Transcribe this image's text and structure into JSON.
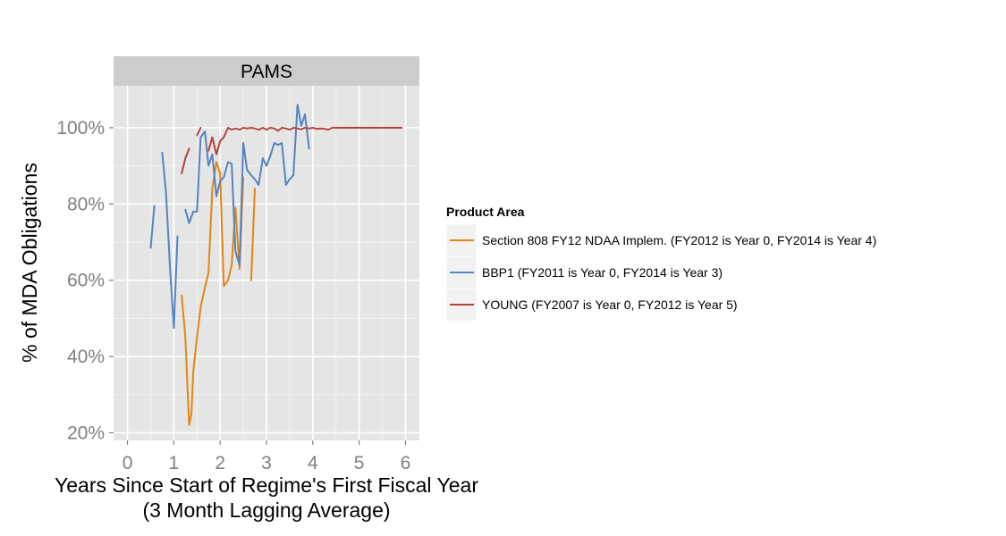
{
  "chart_data": {
    "type": "line",
    "facet_title": "PAMS",
    "xlabel_line1": "Years Since Start of Regime's First Fiscal Year",
    "xlabel_line2": "(3 Month Lagging Average)",
    "ylabel": "% of MDA Obligations",
    "xlim": [
      -0.3,
      6.3
    ],
    "ylim": [
      18,
      111
    ],
    "x_ticks": [
      0,
      1,
      2,
      3,
      4,
      5,
      6
    ],
    "x_tick_labels": [
      "0",
      "1",
      "2",
      "3",
      "4",
      "5",
      "6"
    ],
    "y_ticks": [
      20,
      40,
      60,
      80,
      100
    ],
    "y_tick_labels": [
      "20%",
      "40%",
      "60%",
      "80%",
      "100%"
    ],
    "grid": true,
    "legend_title": "Product Area",
    "legend_position": "right",
    "series": [
      {
        "name": "Section 808 FY12 NDAA Implem. (FY2012 is Year 0, FY2014 is Year 4)",
        "color": "#e3860f",
        "segments": [
          [
            [
              1.17,
              56
            ],
            [
              1.25,
              45
            ],
            [
              1.33,
              22
            ],
            [
              1.38,
              25
            ],
            [
              1.42,
              36
            ],
            [
              1.5,
              45
            ],
            [
              1.58,
              53
            ],
            [
              1.67,
              58
            ],
            [
              1.75,
              62
            ],
            [
              1.83,
              84
            ],
            [
              1.92,
              91
            ],
            [
              2.0,
              88
            ],
            [
              2.08,
              58.5
            ],
            [
              2.17,
              60
            ],
            [
              2.25,
              64
            ],
            [
              2.33,
              79
            ],
            [
              2.42,
              63
            ],
            [
              2.5,
              87
            ]
          ],
          [
            [
              2.67,
              60
            ],
            [
              2.75,
              84
            ]
          ]
        ]
      },
      {
        "name": "BBP1 (FY2011 is Year 0, FY2014 is Year 3)",
        "color": "#5484c1",
        "segments": [
          [
            [
              0.5,
              68.5
            ],
            [
              0.58,
              79.5
            ]
          ],
          [
            [
              0.75,
              93.5
            ],
            [
              0.83,
              83
            ],
            [
              0.92,
              63
            ],
            [
              1.0,
              47.5
            ],
            [
              1.08,
              71.5
            ]
          ],
          [
            [
              1.25,
              78.5
            ],
            [
              1.33,
              75
            ],
            [
              1.42,
              78
            ],
            [
              1.5,
              78
            ],
            [
              1.58,
              97.5
            ],
            [
              1.67,
              99
            ],
            [
              1.75,
              90
            ],
            [
              1.83,
              93
            ],
            [
              1.92,
              82
            ],
            [
              2.0,
              86
            ],
            [
              2.08,
              87
            ],
            [
              2.17,
              91
            ],
            [
              2.25,
              90.5
            ],
            [
              2.33,
              67.5
            ],
            [
              2.42,
              64
            ],
            [
              2.5,
              96
            ],
            [
              2.58,
              89
            ],
            [
              2.67,
              87.5
            ],
            [
              2.75,
              86.5
            ],
            [
              2.83,
              85
            ],
            [
              2.92,
              92
            ],
            [
              3.0,
              90
            ],
            [
              3.08,
              92.5
            ],
            [
              3.17,
              96
            ],
            [
              3.25,
              95.5
            ],
            [
              3.33,
              96
            ],
            [
              3.42,
              85
            ],
            [
              3.5,
              86.5
            ],
            [
              3.58,
              87.5
            ],
            [
              3.67,
              106
            ],
            [
              3.75,
              100.5
            ],
            [
              3.83,
              103.5
            ],
            [
              3.92,
              94.5
            ]
          ]
        ]
      },
      {
        "name": "YOUNG (FY2007 is Year 0, FY2012 is Year 5)",
        "color": "#b3443c",
        "segments": [
          [
            [
              1.17,
              88
            ],
            [
              1.25,
              92
            ],
            [
              1.33,
              94.5
            ]
          ],
          [
            [
              1.5,
              98
            ],
            [
              1.58,
              100
            ]
          ],
          [
            [
              1.75,
              94
            ],
            [
              1.83,
              97.5
            ],
            [
              1.92,
              93
            ],
            [
              2.0,
              96.5
            ],
            [
              2.08,
              97.5
            ],
            [
              2.17,
              100
            ],
            [
              2.25,
              99.5
            ],
            [
              2.33,
              99.8
            ],
            [
              2.42,
              99.5
            ],
            [
              2.5,
              100
            ],
            [
              2.58,
              99.8
            ],
            [
              2.67,
              100
            ],
            [
              2.75,
              99.8
            ],
            [
              2.83,
              99.5
            ],
            [
              2.92,
              100
            ],
            [
              3.0,
              99.5
            ],
            [
              3.08,
              100
            ],
            [
              3.17,
              99.8
            ],
            [
              3.25,
              99.2
            ],
            [
              3.33,
              100
            ],
            [
              3.42,
              99.8
            ],
            [
              3.5,
              99.5
            ],
            [
              3.58,
              100
            ],
            [
              3.67,
              99.8
            ],
            [
              3.75,
              99.6
            ],
            [
              3.83,
              100
            ],
            [
              3.92,
              99.8
            ],
            [
              4.0,
              100
            ],
            [
              4.08,
              99.7
            ],
            [
              4.17,
              99.8
            ],
            [
              4.25,
              99.7
            ],
            [
              4.33,
              99.5
            ],
            [
              4.42,
              100
            ],
            [
              4.5,
              100
            ],
            [
              5.0,
              100
            ],
            [
              5.5,
              100
            ],
            [
              5.92,
              100
            ]
          ]
        ]
      }
    ]
  }
}
